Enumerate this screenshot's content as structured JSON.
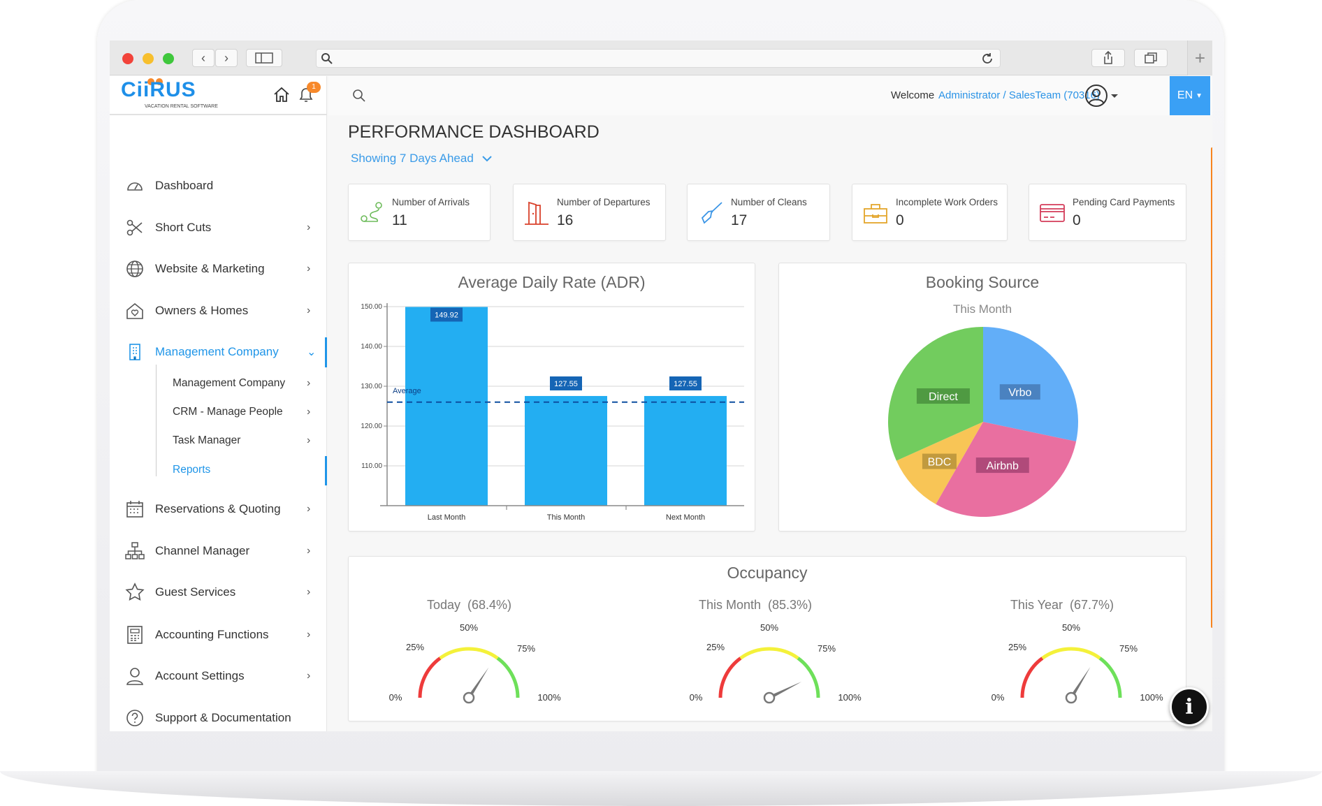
{
  "brand": {
    "name": "CiiRUS",
    "tagline": "VACATION RENTAL SOFTWARE",
    "notification_count": "1"
  },
  "header": {
    "welcome": "Welcome",
    "user": "Administrator / SalesTeam (70316)",
    "language": "EN"
  },
  "sidebar": {
    "items": [
      {
        "label": "Dashboard",
        "icon": "dashboard-icon"
      },
      {
        "label": "Short Cuts",
        "icon": "scissors-icon"
      },
      {
        "label": "Website & Marketing",
        "icon": "globe-icon"
      },
      {
        "label": "Owners & Homes",
        "icon": "home-heart-icon"
      },
      {
        "label": "Management Company",
        "icon": "building-icon"
      },
      {
        "label": "Reservations & Quoting",
        "icon": "calendar-icon"
      },
      {
        "label": "Channel Manager",
        "icon": "sitemap-icon"
      },
      {
        "label": "Guest Services",
        "icon": "star-icon"
      },
      {
        "label": "Accounting Functions",
        "icon": "calculator-icon"
      },
      {
        "label": "Account Settings",
        "icon": "user-icon"
      },
      {
        "label": "Support & Documentation",
        "icon": "help-icon"
      }
    ],
    "subitems": [
      {
        "label": "Management Company"
      },
      {
        "label": "CRM - Manage People"
      },
      {
        "label": "Task Manager"
      },
      {
        "label": "Reports"
      }
    ]
  },
  "main": {
    "title": "PERFORMANCE DASHBOARD",
    "range": "Showing 7 Days Ahead",
    "stats": [
      {
        "label": "Number of Arrivals",
        "value": "11",
        "color": "#6dbb5a"
      },
      {
        "label": "Number of Departures",
        "value": "16",
        "color": "#d9412b"
      },
      {
        "label": "Number of Cleans",
        "value": "17",
        "color": "#3b95e6"
      },
      {
        "label": "Incomplete Work Orders",
        "value": "0",
        "color": "#e3a52a"
      },
      {
        "label": "Pending Card Payments",
        "value": "0",
        "color": "#d43c5a"
      }
    ]
  },
  "chart_data": [
    {
      "type": "bar",
      "title": "Average Daily Rate (ADR)",
      "categories": [
        "Last Month",
        "This Month",
        "Next Month"
      ],
      "values": [
        149.92,
        127.55,
        127.55
      ],
      "value_labels": [
        "149.92",
        "127.55",
        "127.55"
      ],
      "ylim": [
        100,
        150
      ],
      "yticks": [
        "150.00",
        "140.00",
        "130.00",
        "120.00",
        "110.00"
      ],
      "ytick_values": [
        150,
        140,
        130,
        120,
        110
      ],
      "average": 126,
      "average_label": "Average",
      "bar_color": "#23aef2",
      "grid": true
    },
    {
      "type": "pie",
      "title": "Booking Source",
      "subtitle": "This Month",
      "slices": [
        {
          "label": "Vrbo",
          "value": 28.3,
          "color": "#62aef8",
          "label_bg": "#4a82c0"
        },
        {
          "label": "Airbnb",
          "value": 30.0,
          "color": "#e96fa0",
          "label_bg": "#b04a7a"
        },
        {
          "label": "BDC",
          "value": 10.0,
          "color": "#f8c556",
          "label_bg": "#c19a3e"
        },
        {
          "label": "Direct",
          "value": 31.7,
          "color": "#72cc5e",
          "label_bg": "#4f9a42"
        }
      ]
    },
    {
      "type": "gauge",
      "title": "Occupancy",
      "tick_labels": [
        "0%",
        "25%",
        "50%",
        "75%",
        "100%"
      ],
      "gauges": [
        {
          "label": "Today",
          "value_text": "(68.4%)",
          "value": 68.4
        },
        {
          "label": "This Month",
          "value_text": "(85.3%)",
          "value": 85.3
        },
        {
          "label": "This Year",
          "value_text": "(67.7%)",
          "value": 67.7
        }
      ]
    }
  ]
}
